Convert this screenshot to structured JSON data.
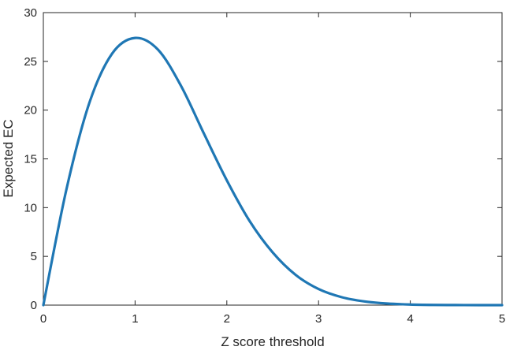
{
  "chart_data": {
    "type": "line",
    "title": "",
    "xlabel": "Z score threshold",
    "ylabel": "Expected EC",
    "xlim": [
      0,
      5
    ],
    "ylim": [
      0,
      30
    ],
    "xticks": [
      0,
      1,
      2,
      3,
      4,
      5
    ],
    "yticks": [
      0,
      5,
      10,
      15,
      20,
      25,
      30
    ],
    "xtick_labels": [
      "0",
      "1",
      "2",
      "3",
      "4",
      "5"
    ],
    "ytick_labels": [
      "0",
      "5",
      "10",
      "15",
      "20",
      "25",
      "30"
    ],
    "grid": false,
    "legend": "none",
    "series": [
      {
        "color": "#1f77b4",
        "x": [
          0,
          0.25,
          0.5,
          0.75,
          1.0,
          1.25,
          1.5,
          1.75,
          2.0,
          2.25,
          2.5,
          2.75,
          3.0,
          3.25,
          3.5,
          3.75,
          4.0,
          4.25,
          4.5,
          4.75,
          5.0
        ],
        "y": [
          0,
          11.8,
          20.7,
          25.8,
          27.4,
          26.2,
          22.5,
          17.6,
          12.8,
          8.6,
          5.4,
          3.1,
          1.65,
          0.82,
          0.38,
          0.16,
          0.06,
          0.02,
          0.01,
          0.0,
          0.0
        ]
      }
    ]
  }
}
